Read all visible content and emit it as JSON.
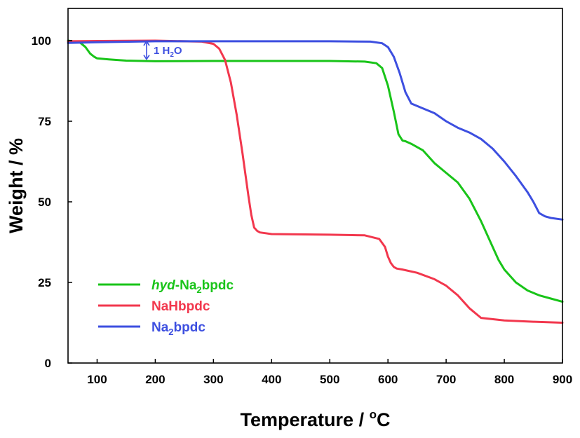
{
  "chart_data": {
    "type": "line",
    "xlabel": "Temperature / °C",
    "xlabel_parts": {
      "main": "Temperature / ",
      "sup": "o",
      "unit": "C"
    },
    "ylabel": "Weight / %",
    "xlim": [
      50,
      900
    ],
    "ylim": [
      0,
      110
    ],
    "xticks": [
      100,
      200,
      300,
      400,
      500,
      600,
      700,
      800,
      900
    ],
    "yticks": [
      0,
      25,
      50,
      75,
      100
    ],
    "grid": false,
    "legend_position": "lower-left",
    "annotation": {
      "text": "1 H₂O",
      "main": "1 H",
      "sub": "2",
      "tail": "O",
      "x": 185,
      "y_top": 100,
      "y_bottom": 94,
      "color": "#3d4fe0"
    },
    "series": [
      {
        "name": "hyd-Na2bpdc",
        "legend": {
          "italic": "hyd",
          "rest": "-Na",
          "sub": "2",
          "tail": "bpdc"
        },
        "color": "#19c419",
        "x": [
          50,
          70,
          80,
          88,
          95,
          100,
          120,
          150,
          200,
          300,
          400,
          500,
          560,
          580,
          590,
          600,
          610,
          618,
          625,
          630,
          640,
          660,
          680,
          700,
          720,
          740,
          760,
          780,
          790,
          800,
          820,
          840,
          860,
          880,
          900
        ],
        "y": [
          100,
          99.5,
          98,
          96,
          95,
          94.5,
          94.2,
          93.8,
          93.6,
          93.7,
          93.7,
          93.7,
          93.5,
          93.0,
          91.5,
          86,
          78,
          71,
          69,
          68.8,
          68,
          66,
          62,
          59,
          56,
          51,
          44,
          36,
          32,
          29,
          25,
          22.5,
          21,
          20,
          19
        ]
      },
      {
        "name": "NaHbpdc",
        "legend": {
          "italic": "",
          "rest": "NaHbpdc",
          "sub": "",
          "tail": ""
        },
        "color": "#f2374d",
        "x": [
          50,
          100,
          200,
          280,
          300,
          310,
          320,
          330,
          340,
          350,
          360,
          365,
          370,
          375,
          380,
          400,
          500,
          560,
          585,
          595,
          600,
          605,
          610,
          615,
          625,
          650,
          680,
          700,
          720,
          740,
          760,
          800,
          850,
          900
        ],
        "y": [
          99.8,
          99.9,
          100,
          99.7,
          99,
          97.5,
          94,
          87,
          77,
          65,
          52,
          46,
          42,
          41,
          40.5,
          40,
          39.8,
          39.6,
          38.5,
          36,
          33,
          31,
          29.8,
          29.3,
          29,
          28,
          26,
          24,
          21,
          17,
          14,
          13.2,
          12.8,
          12.5
        ]
      },
      {
        "name": "Na2bpdc",
        "legend": {
          "italic": "",
          "rest": "Na",
          "sub": "2",
          "tail": "bpdc"
        },
        "color": "#3d4fe0",
        "x": [
          50,
          100,
          200,
          300,
          400,
          500,
          570,
          590,
          600,
          610,
          620,
          630,
          640,
          660,
          680,
          700,
          720,
          740,
          760,
          780,
          800,
          820,
          840,
          850,
          860,
          870,
          880,
          900
        ],
        "y": [
          99.3,
          99.5,
          99.8,
          99.8,
          99.8,
          99.8,
          99.7,
          99.2,
          98,
          95,
          90,
          84,
          80.5,
          79,
          77.5,
          75,
          73,
          71.5,
          69.5,
          66.5,
          62.5,
          58,
          53,
          50,
          46.5,
          45.5,
          45,
          44.5
        ]
      }
    ]
  }
}
